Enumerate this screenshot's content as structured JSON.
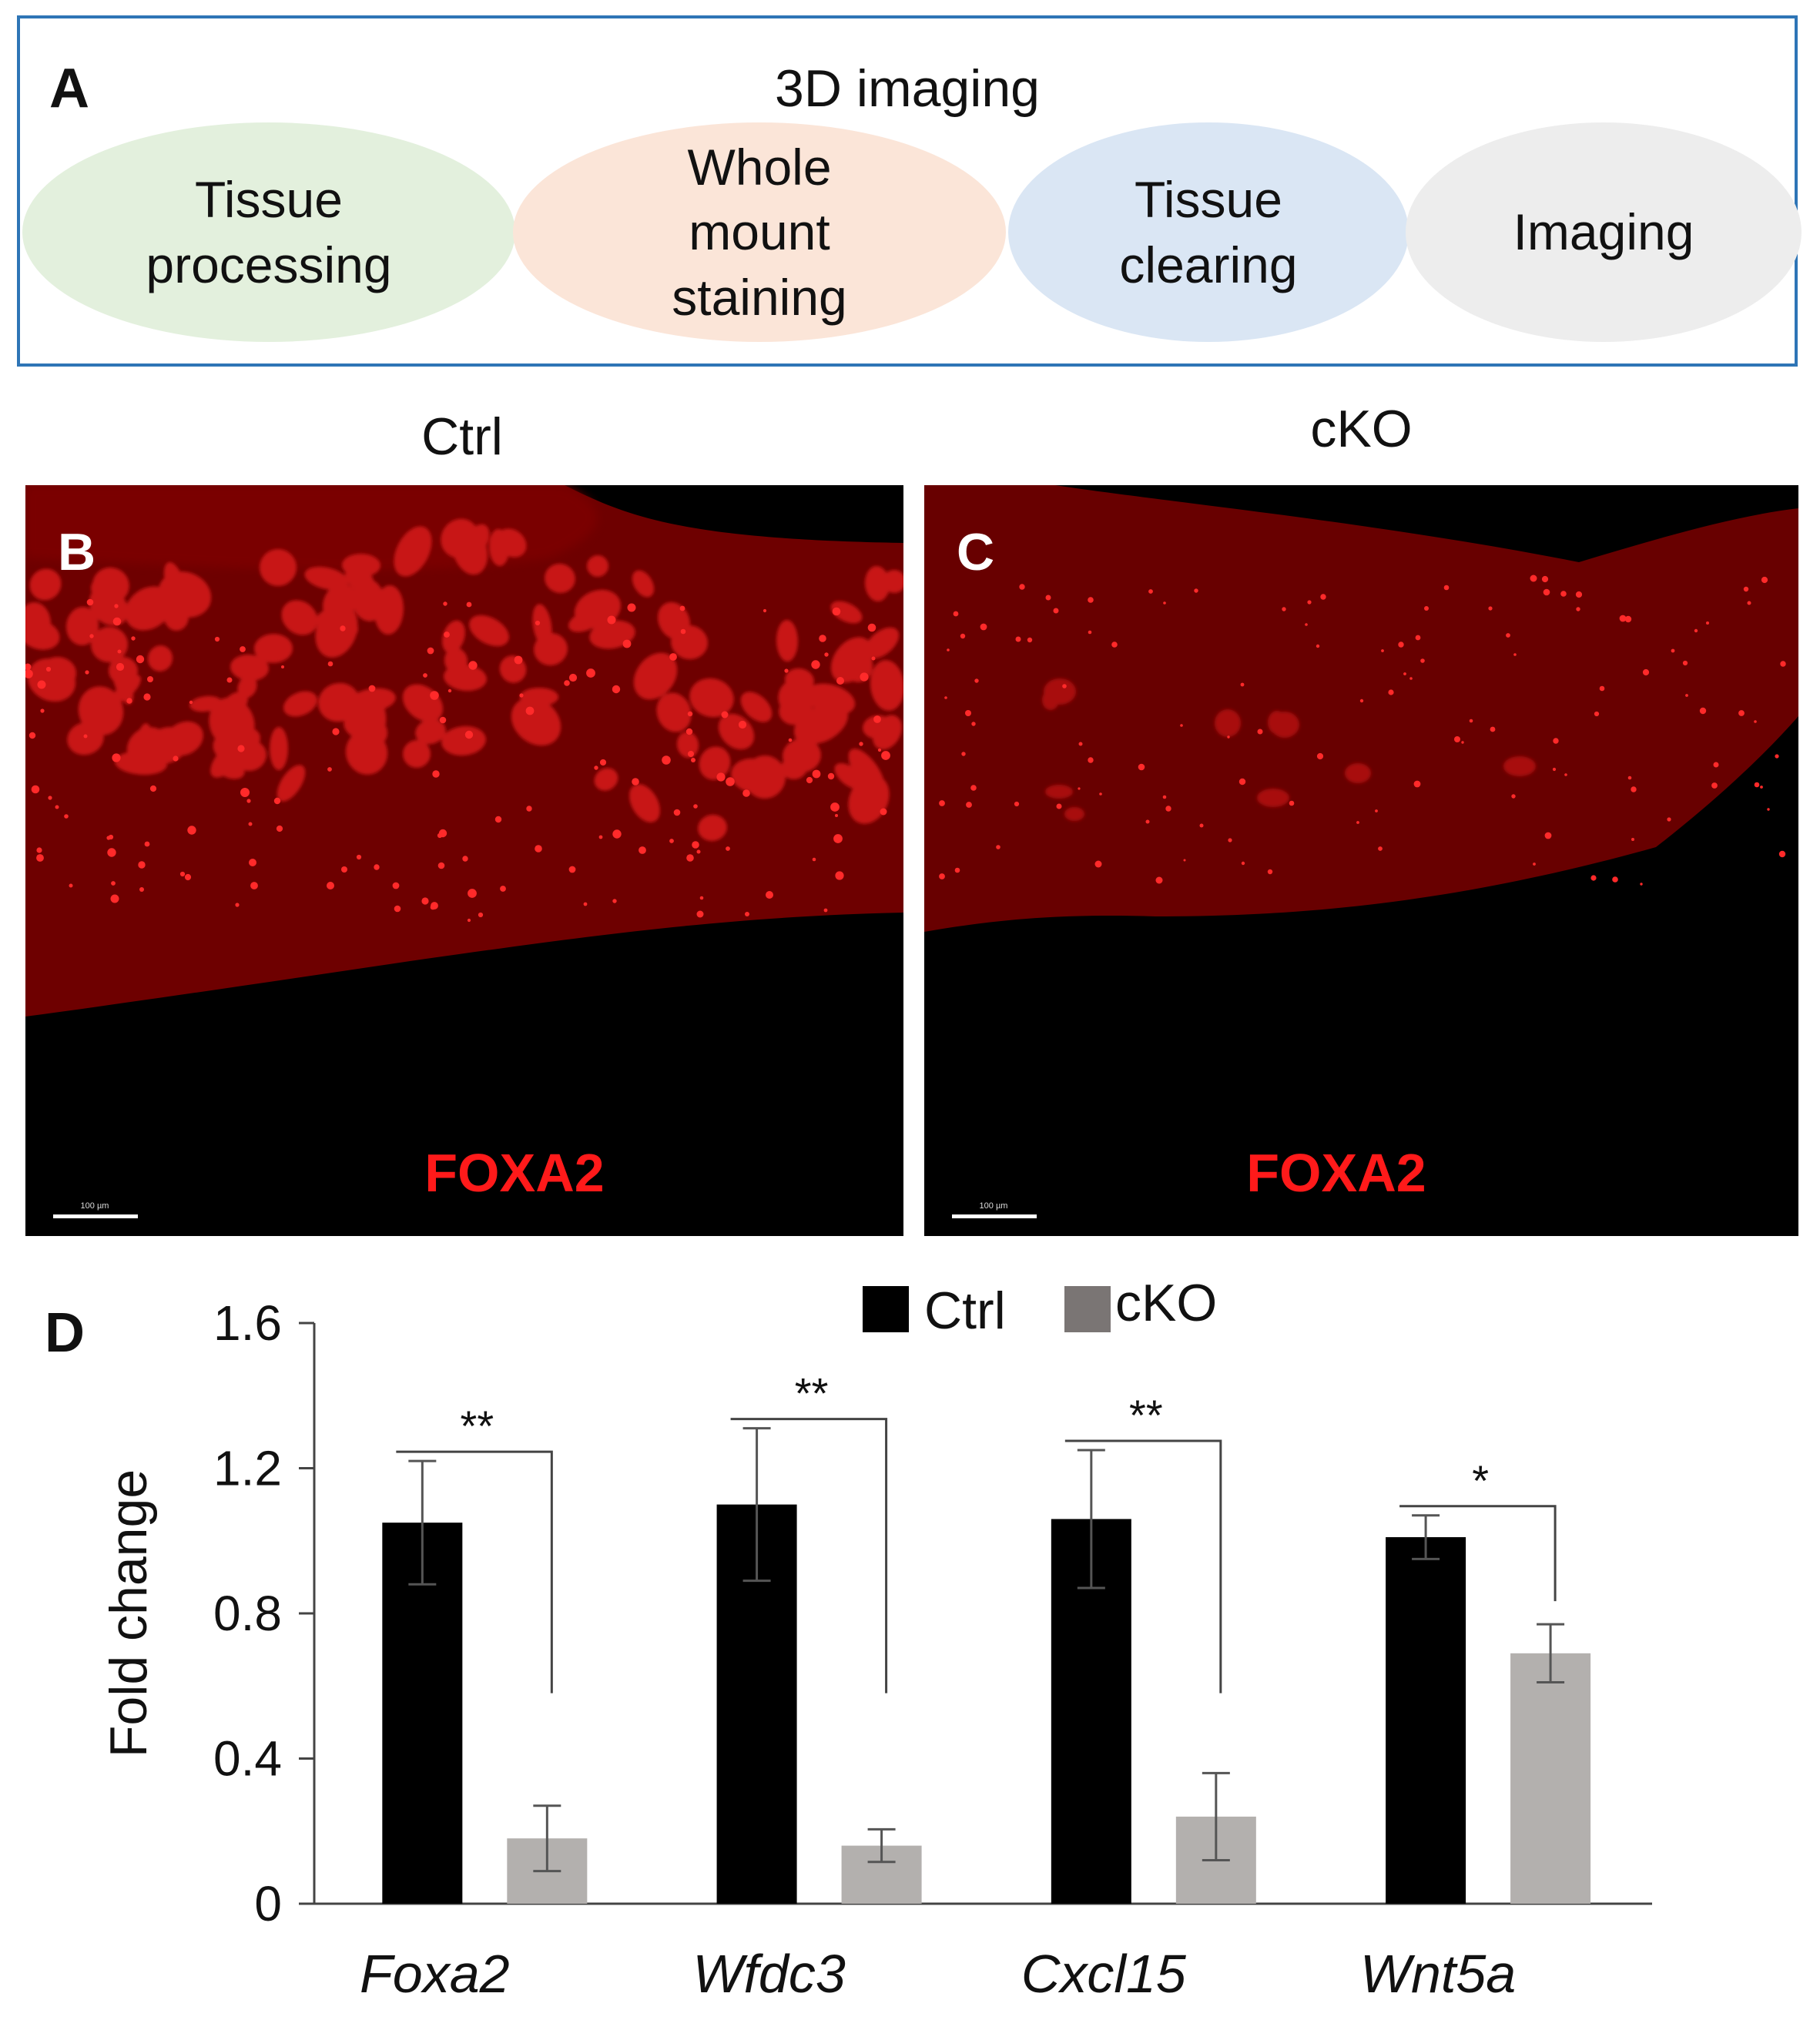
{
  "panel_a": {
    "letter": "A",
    "title": "3D imaging",
    "steps": [
      {
        "label": "Tissue\nprocessing",
        "color": "#e3f0dd"
      },
      {
        "label": "Whole\nmount\nstaining",
        "color": "#fbe5d8"
      },
      {
        "label": "Tissue\nclearing",
        "color": "#dae6f4"
      },
      {
        "label": "Imaging",
        "color": "#ededed"
      }
    ]
  },
  "panel_b": {
    "letter": "B",
    "condition": "Ctrl",
    "stain": "FOXA2",
    "scale_text": "100 µm"
  },
  "panel_c": {
    "letter": "C",
    "condition": "cKO",
    "stain": "FOXA2",
    "scale_text": "100 µm"
  },
  "panel_d": {
    "letter": "D"
  },
  "chart_data": {
    "type": "bar",
    "categories": [
      "Foxa2",
      "Wfdc3",
      "Cxcl15",
      "Wnt5a"
    ],
    "series": [
      {
        "name": "Ctrl",
        "color": "#000000",
        "values": [
          1.05,
          1.1,
          1.06,
          1.01
        ],
        "errors": [
          0.17,
          0.21,
          0.19,
          0.06
        ]
      },
      {
        "name": "cKO",
        "color": "#b3b0ae",
        "values": [
          0.18,
          0.16,
          0.24,
          0.69
        ],
        "errors": [
          0.09,
          0.045,
          0.12,
          0.08
        ]
      }
    ],
    "significance": [
      "**",
      "**",
      "**",
      "*"
    ],
    "ylabel": "Fold change",
    "xlabel": "",
    "ylim": [
      0,
      1.6
    ],
    "yticks": [
      "0",
      "0.4",
      "0.8",
      "1.2",
      "1.6"
    ],
    "legend_position": "top-center",
    "legend_swatch_color_cko": "#7a7574"
  }
}
